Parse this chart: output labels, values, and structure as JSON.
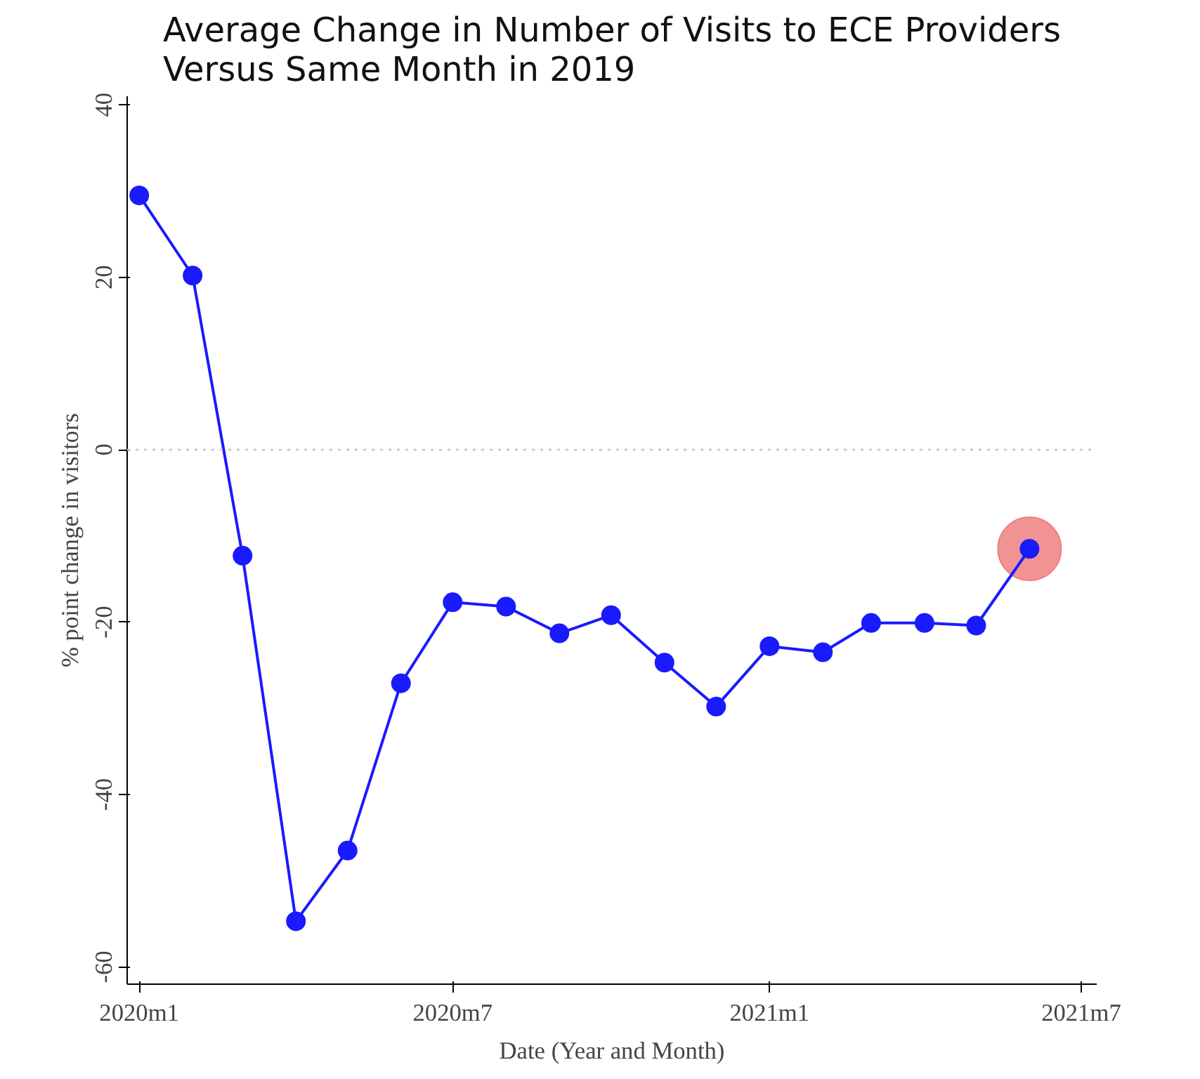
{
  "chart_data": {
    "type": "line",
    "title": "Average Change in Number of Visits to ECE Providers\nVersus Same Month in 2019",
    "xlabel": "Date (Year and Month)",
    "ylabel": "% point change in visitors",
    "x": [
      "2020-01",
      "2020-02",
      "2020-03",
      "2020-04",
      "2020-05",
      "2020-06",
      "2020-07",
      "2020-08",
      "2020-09",
      "2020-10",
      "2020-11",
      "2020-12",
      "2021-01",
      "2021-02",
      "2021-03",
      "2021-04",
      "2021-05",
      "2021-06"
    ],
    "series": [
      {
        "color": "#1a1aff",
        "values": [
          29.5,
          20.2,
          -12.3,
          -54.7,
          -46.5,
          -27.1,
          -17.7,
          -18.2,
          -21.3,
          -19.2,
          -24.7,
          -29.8,
          -22.8,
          -23.5,
          -20.1,
          -20.1,
          -20.4,
          -11.5
        ]
      },
      {
        "type": "scatter",
        "color": "#f08080",
        "x": [
          "2021-06"
        ],
        "values": [
          -11.5
        ]
      }
    ],
    "xlim": [
      "2019-12-25",
      "2021-07-10"
    ],
    "xticks": [
      {
        "value": "2020-01",
        "label": "2020m1"
      },
      {
        "value": "2020-07",
        "label": "2020m7"
      },
      {
        "value": "2021-01",
        "label": "2021m1"
      },
      {
        "value": "2021-07",
        "label": "2021m7"
      }
    ],
    "ylim": [
      -62,
      41
    ],
    "yticks": [
      -60,
      -40,
      -20,
      0,
      20,
      40
    ],
    "ref_lines": [
      {
        "axis": "y",
        "value": 0,
        "color": "#cccccc",
        "line_style": "dotted"
      }
    ],
    "grid": false,
    "marker": "circle",
    "line_style": "solid"
  }
}
